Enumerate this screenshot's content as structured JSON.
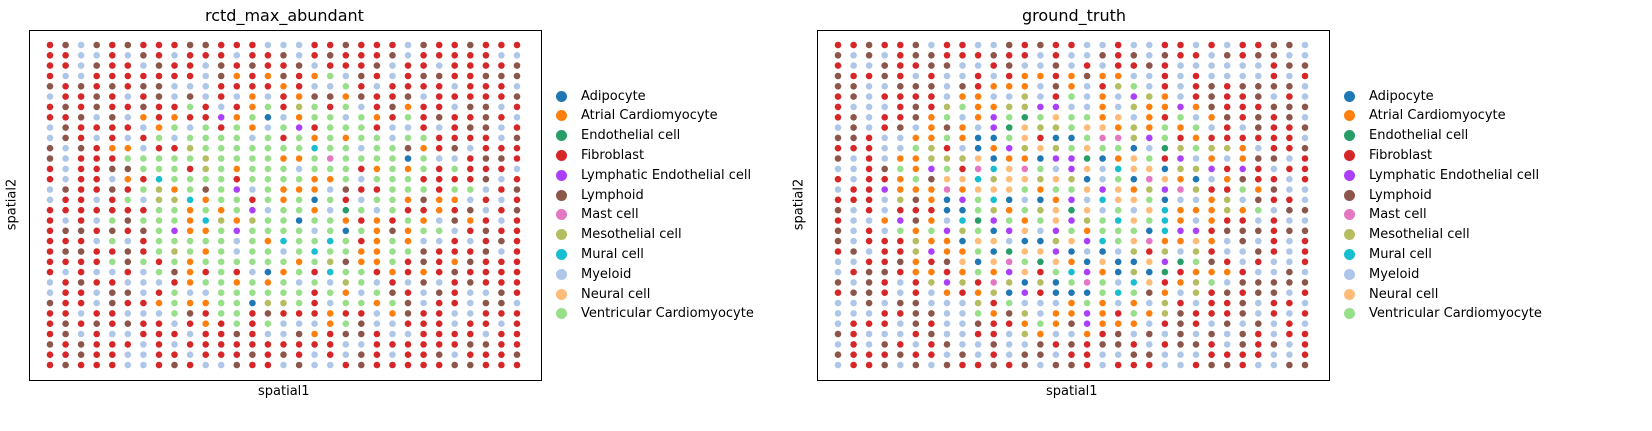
{
  "chart_data": [
    {
      "type": "scatter",
      "title": "rctd_max_abundant",
      "xlabel": "spatial1",
      "ylabel": "spatial2",
      "grid": false,
      "legend_position": "right",
      "grid_columns": 31,
      "grid_rows": 32,
      "seed": 7,
      "series": [
        {
          "name": "Adipocyte",
          "color": "#1f77b4"
        },
        {
          "name": "Atrial Cardiomyocyte",
          "color": "#ff7f0e"
        },
        {
          "name": "Endothelial cell",
          "color": "#279e68"
        },
        {
          "name": "Fibroblast",
          "color": "#d62728"
        },
        {
          "name": "Lymphatic Endothelial cell",
          "color": "#aa40fc"
        },
        {
          "name": "Lymphoid",
          "color": "#8c564b"
        },
        {
          "name": "Mast cell",
          "color": "#e377c2"
        },
        {
          "name": "Mesothelial cell",
          "color": "#b5bd61"
        },
        {
          "name": "Mural cell",
          "color": "#17becf"
        },
        {
          "name": "Myeloid",
          "color": "#aec7e8"
        },
        {
          "name": "Neural cell",
          "color": "#ffbb78"
        },
        {
          "name": "Ventricular Cardiomyocyte",
          "color": "#98df8a"
        }
      ]
    },
    {
      "type": "scatter",
      "title": "ground_truth",
      "xlabel": "spatial1",
      "ylabel": "spatial2",
      "grid": false,
      "legend_position": "right",
      "grid_columns": 31,
      "grid_rows": 32,
      "seed": 19,
      "series": [
        {
          "name": "Adipocyte",
          "color": "#1f77b4"
        },
        {
          "name": "Atrial Cardiomyocyte",
          "color": "#ff7f0e"
        },
        {
          "name": "Endothelial cell",
          "color": "#279e68"
        },
        {
          "name": "Fibroblast",
          "color": "#d62728"
        },
        {
          "name": "Lymphatic Endothelial cell",
          "color": "#aa40fc"
        },
        {
          "name": "Lymphoid",
          "color": "#8c564b"
        },
        {
          "name": "Mast cell",
          "color": "#e377c2"
        },
        {
          "name": "Mesothelial cell",
          "color": "#b5bd61"
        },
        {
          "name": "Mural cell",
          "color": "#17becf"
        },
        {
          "name": "Myeloid",
          "color": "#aec7e8"
        },
        {
          "name": "Neural cell",
          "color": "#ffbb78"
        },
        {
          "name": "Ventricular Cardiomyocyte",
          "color": "#98df8a"
        }
      ]
    }
  ]
}
